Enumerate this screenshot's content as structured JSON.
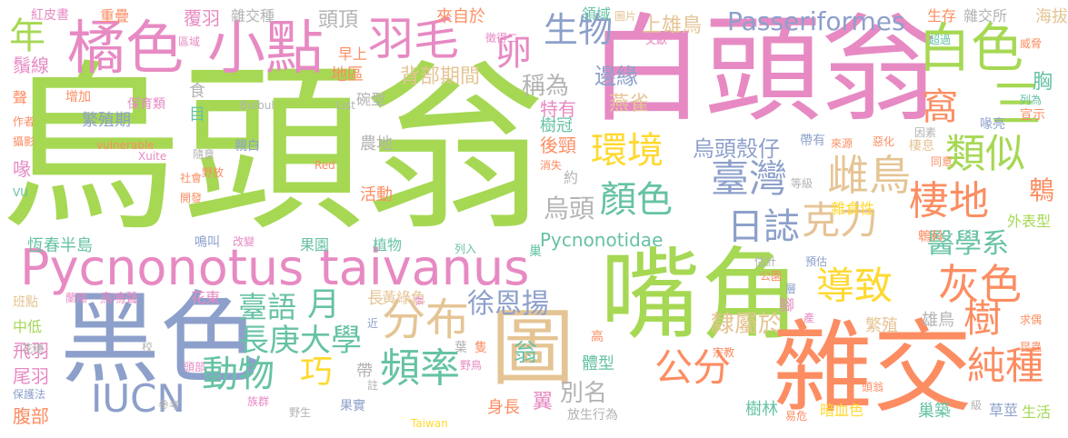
{
  "colors": {
    "green": "#a6d854",
    "pink": "#e78ac3",
    "blue": "#8da0cb",
    "orange": "#fc8d62",
    "teal": "#66c2a5",
    "yellow": "#ffd92f",
    "tan": "#e5c494",
    "gray": "#b3b3b3"
  },
  "words": [
    {
      "text": "烏頭翁",
      "color": "green",
      "weight": 1.0
    },
    {
      "text": "白頭翁",
      "color": "pink",
      "weight": 0.62
    },
    {
      "text": "Pycnonotus taivanus",
      "color": "pink",
      "weight": 0.4
    },
    {
      "text": "黑色",
      "color": "blue",
      "weight": 0.62
    },
    {
      "text": "嘴角",
      "color": "green",
      "weight": 0.58
    },
    {
      "text": "雜交",
      "color": "orange",
      "weight": 0.58
    },
    {
      "text": "圖",
      "color": "tan",
      "weight": 0.45
    },
    {
      "text": "橘色",
      "color": "pink",
      "weight": 0.4
    },
    {
      "text": "小點",
      "color": "pink",
      "weight": 0.4
    },
    {
      "text": "羽毛",
      "color": "pink",
      "weight": 0.32
    },
    {
      "text": "白色",
      "color": "green",
      "weight": 0.38
    },
    {
      "text": "三",
      "color": "green",
      "weight": 0.34
    },
    {
      "text": "環境",
      "color": "yellow",
      "weight": 0.28
    },
    {
      "text": "類似",
      "color": "green",
      "weight": 0.3
    },
    {
      "text": "臺灣",
      "color": "blue",
      "weight": 0.28
    },
    {
      "text": "雌鳥",
      "color": "tan",
      "weight": 0.3
    },
    {
      "text": "棲地",
      "color": "orange",
      "weight": 0.28
    },
    {
      "text": "克力",
      "color": "tan",
      "weight": 0.28
    },
    {
      "text": "顏色",
      "color": "teal",
      "weight": 0.28
    },
    {
      "text": "日誌",
      "color": "blue",
      "weight": 0.28
    },
    {
      "text": "灰色",
      "color": "orange",
      "weight": 0.3
    },
    {
      "text": "導致",
      "color": "yellow",
      "weight": 0.28
    },
    {
      "text": "分布",
      "color": "tan",
      "weight": 0.3
    },
    {
      "text": "頻率",
      "color": "teal",
      "weight": 0.3
    },
    {
      "text": "IUCN",
      "color": "blue",
      "weight": 0.28
    },
    {
      "text": "動物",
      "color": "teal",
      "weight": 0.28
    },
    {
      "text": "公分",
      "color": "orange",
      "weight": 0.28
    },
    {
      "text": "純種",
      "color": "orange",
      "weight": 0.28
    },
    {
      "text": "樹",
      "color": "orange",
      "weight": 0.28
    },
    {
      "text": "長庚大學",
      "color": "teal",
      "weight": 0.22
    },
    {
      "text": "巧",
      "color": "yellow",
      "weight": 0.24
    },
    {
      "text": "月",
      "color": "teal",
      "weight": 0.24
    },
    {
      "text": "臺語",
      "color": "teal",
      "weight": 0.22
    },
    {
      "text": "醫學系",
      "color": "teal",
      "weight": 0.2
    },
    {
      "text": "鵯科",
      "color": "orange",
      "weight": 0.18
    },
    {
      "text": "徐恩揚",
      "color": "blue",
      "weight": 0.2
    },
    {
      "text": "年",
      "color": "green",
      "weight": 0.24
    },
    {
      "text": "生物",
      "color": "blue",
      "weight": 0.24
    },
    {
      "text": "卵",
      "color": "pink",
      "weight": 0.26
    },
    {
      "text": "窩",
      "color": "orange",
      "weight": 0.24
    },
    {
      "text": "Passeriformes",
      "color": "blue",
      "weight": 0.2
    },
    {
      "text": "頭頂",
      "color": "gray",
      "weight": 0.14
    },
    {
      "text": "烏頭",
      "color": "gray",
      "weight": 0.18
    },
    {
      "text": "烏頭殼仔",
      "color": "blue",
      "weight": 0.16
    },
    {
      "text": "稱為",
      "color": "gray",
      "weight": 0.16
    },
    {
      "text": "隸屬於",
      "color": "tan",
      "weight": 0.16
    },
    {
      "text": "別名",
      "color": "gray",
      "weight": 0.16
    },
    {
      "text": "燕雀",
      "color": "tan",
      "weight": 0.14
    },
    {
      "text": "邊緣",
      "color": "blue",
      "weight": 0.16
    },
    {
      "text": "Pycnonotidae",
      "color": "teal",
      "weight": 0.12
    },
    {
      "text": "背部期間",
      "color": "tan",
      "weight": 0.14
    },
    {
      "text": "上雄鳥",
      "color": "tan",
      "weight": 0.14
    },
    {
      "text": "鵯",
      "color": "orange",
      "weight": 0.18
    },
    {
      "text": "胸",
      "color": "teal",
      "weight": 0.14
    },
    {
      "text": "特有",
      "color": "pink",
      "weight": 0.12
    },
    {
      "text": "後頸",
      "color": "orange",
      "weight": 0.12
    },
    {
      "text": "農地",
      "color": "gray",
      "weight": 0.12
    },
    {
      "text": "活動",
      "color": "orange",
      "weight": 0.12
    },
    {
      "text": "樹冠",
      "color": "teal",
      "weight": 0.12
    },
    {
      "text": "繁殖期",
      "color": "blue",
      "weight": 0.12
    },
    {
      "text": "恆春半島",
      "color": "teal",
      "weight": 0.12
    },
    {
      "text": "果園",
      "color": "teal",
      "weight": 0.1
    },
    {
      "text": "植物",
      "color": "teal",
      "weight": 0.1
    },
    {
      "text": "花東",
      "color": "pink",
      "weight": 0.1
    },
    {
      "text": "翁",
      "color": "teal",
      "weight": 0.18
    },
    {
      "text": "體型",
      "color": "teal",
      "weight": 0.12
    },
    {
      "text": "身長",
      "color": "orange",
      "weight": 0.12
    },
    {
      "text": "翼",
      "color": "pink",
      "weight": 0.14
    },
    {
      "text": "樹林",
      "color": "teal",
      "weight": 0.12
    },
    {
      "text": "雄鳥",
      "color": "gray",
      "weight": 0.12
    },
    {
      "text": "暗血色",
      "color": "yellow",
      "weight": 0.12
    },
    {
      "text": "巢築",
      "color": "teal",
      "weight": 0.12
    },
    {
      "text": "草莖",
      "color": "blue",
      "weight": 0.12
    },
    {
      "text": "生活",
      "color": "green",
      "weight": 0.12
    },
    {
      "text": "繁殖",
      "color": "tan",
      "weight": 0.12
    },
    {
      "text": "雜食性",
      "color": "yellow",
      "weight": 0.1
    },
    {
      "text": "外表型",
      "color": "green",
      "weight": 0.1
    },
    {
      "text": "來自於",
      "color": "orange",
      "weight": 0.1
    },
    {
      "text": "領域",
      "color": "teal",
      "weight": 0.1
    },
    {
      "text": "海拔",
      "color": "tan",
      "weight": 0.12
    },
    {
      "text": "雜交所",
      "color": "gray",
      "weight": 0.1
    },
    {
      "text": "生存",
      "color": "orange",
      "weight": 0.1
    },
    {
      "text": "覆羽",
      "color": "pink",
      "weight": 0.12
    },
    {
      "text": "雜交種",
      "color": "gray",
      "weight": 0.1
    },
    {
      "text": "重疊",
      "color": "orange",
      "weight": 0.1
    },
    {
      "text": "紅皮書",
      "color": "pink",
      "weight": 0.09
    },
    {
      "text": "鬚線",
      "color": "pink",
      "weight": 0.12
    },
    {
      "text": "聲",
      "color": "orange",
      "weight": 0.1
    },
    {
      "text": "喙",
      "color": "pink",
      "weight": 0.12
    },
    {
      "text": "飛羽",
      "color": "pink",
      "weight": 0.12
    },
    {
      "text": "尾羽",
      "color": "pink",
      "weight": 0.12
    },
    {
      "text": "腹部",
      "color": "orange",
      "weight": 0.12
    },
    {
      "text": "中低",
      "color": "green",
      "weight": 0.1
    },
    {
      "text": "班點",
      "color": "tan",
      "weight": 0.09
    },
    {
      "text": "增加",
      "color": "orange",
      "weight": 0.09
    },
    {
      "text": "地區",
      "color": "orange",
      "weight": 0.1
    },
    {
      "text": "早上",
      "color": "orange",
      "weight": 0.1
    },
    {
      "text": "碗型",
      "color": "gray",
      "weight": 0.09
    },
    {
      "text": "食",
      "color": "gray",
      "weight": 0.1
    },
    {
      "text": "目",
      "color": "teal",
      "weight": 0.1
    },
    {
      "text": "保育類",
      "color": "pink",
      "weight": 0.09
    },
    {
      "text": "Bulbul",
      "color": "gray",
      "weight": 0.07
    },
    {
      "text": "vulnerable",
      "color": "orange",
      "weight": 0.07
    },
    {
      "text": "親白",
      "color": "blue",
      "weight": 0.09
    },
    {
      "text": "喙亮",
      "color": "blue",
      "weight": 0.09
    },
    {
      "text": "宣示",
      "color": "orange",
      "weight": 0.09
    },
    {
      "text": "超過",
      "color": "teal",
      "weight": 0.08
    },
    {
      "text": "威脅",
      "color": "orange",
      "weight": 0.08
    },
    {
      "text": "棲息",
      "color": "tan",
      "weight": 0.09
    },
    {
      "text": "惡化",
      "color": "orange",
      "weight": 0.08
    },
    {
      "text": "因素",
      "color": "gray",
      "weight": 0.08
    },
    {
      "text": "同意",
      "color": "orange",
      "weight": 0.08
    },
    {
      "text": "帶有",
      "color": "blue",
      "weight": 0.09
    },
    {
      "text": "來源",
      "color": "orange",
      "weight": 0.08
    },
    {
      "text": "等級",
      "color": "gray",
      "weight": 0.08
    },
    {
      "text": "鳴叫",
      "color": "blue",
      "weight": 0.09
    },
    {
      "text": "改變",
      "color": "pink",
      "weight": 0.08
    },
    {
      "text": "鳥鳴聲",
      "color": "pink",
      "weight": 0.09
    },
    {
      "text": "蘭陽",
      "color": "pink",
      "weight": 0.08
    },
    {
      "text": "長",
      "color": "tan",
      "weight": 0.1
    },
    {
      "text": "黃綠色",
      "color": "tan",
      "weight": 0.09
    },
    {
      "text": "估計",
      "color": "gray",
      "weight": 0.08
    },
    {
      "text": "公園",
      "color": "orange",
      "weight": 0.08
    },
    {
      "text": "腳",
      "color": "pink",
      "weight": 0.1
    },
    {
      "text": "產",
      "color": "pink",
      "weight": 0.08
    },
    {
      "text": "宗教",
      "color": "orange",
      "weight": 0.08
    },
    {
      "text": "族群",
      "color": "pink",
      "weight": 0.08
    },
    {
      "text": "頭部",
      "color": "pink",
      "weight": 0.08
    },
    {
      "text": "求偶",
      "color": "orange",
      "weight": 0.08
    },
    {
      "text": "昆蟲",
      "color": "orange",
      "weight": 0.08
    },
    {
      "text": "頭翁",
      "color": "orange",
      "weight": 0.08
    },
    {
      "text": "級",
      "color": "gray",
      "weight": 0.08
    },
    {
      "text": "易危",
      "color": "orange",
      "weight": 0.08
    },
    {
      "text": "放生行為",
      "color": "gray",
      "weight": 0.09
    },
    {
      "text": "果實",
      "color": "blue",
      "weight": 0.09
    },
    {
      "text": "野生",
      "color": "gray",
      "weight": 0.08
    },
    {
      "text": "參考",
      "color": "gray",
      "weight": 0.07
    },
    {
      "text": "保護法",
      "color": "blue",
      "weight": 0.08
    },
    {
      "text": "花穗",
      "color": "gray",
      "weight": 0.08
    },
    {
      "text": "Taiwan",
      "color": "yellow",
      "weight": 0.07
    },
    {
      "text": "野鳥",
      "color": "pink",
      "weight": 0.08
    },
    {
      "text": "隻",
      "color": "orange",
      "weight": 0.09
    },
    {
      "text": "葉",
      "color": "gray",
      "weight": 0.09
    },
    {
      "text": "高",
      "color": "orange",
      "weight": 0.09
    },
    {
      "text": "近",
      "color": "blue",
      "weight": 0.08
    },
    {
      "text": "註",
      "color": "gray",
      "weight": 0.08
    },
    {
      "text": "帶",
      "color": "gray",
      "weight": 0.1
    },
    {
      "text": "校",
      "color": "gray",
      "weight": 0.08
    },
    {
      "text": "張",
      "color": "pink",
      "weight": 0.07
    },
    {
      "text": "列入",
      "color": "teal",
      "weight": 0.07
    },
    {
      "text": "巢",
      "color": "teal",
      "weight": 0.08
    },
    {
      "text": "Red",
      "color": "orange",
      "weight": 0.07
    },
    {
      "text": "List",
      "color": "gray",
      "weight": 0.07
    },
    {
      "text": "消失",
      "color": "orange",
      "weight": 0.07
    },
    {
      "text": "約",
      "color": "gray",
      "weight": 0.09
    },
    {
      "text": "野放",
      "color": "orange",
      "weight": 0.08
    },
    {
      "text": "社會",
      "color": "orange",
      "weight": 0.07
    },
    {
      "text": "開發",
      "color": "orange",
      "weight": 0.07
    },
    {
      "text": "隨意",
      "color": "gray",
      "weight": 0.07
    },
    {
      "text": "Xuite",
      "color": "pink",
      "weight": 0.07
    },
    {
      "text": "區域",
      "color": "pink",
      "weight": 0.07
    },
    {
      "text": "作者",
      "color": "orange",
      "weight": 0.07
    },
    {
      "text": "攝影",
      "color": "orange",
      "weight": 0.07
    },
    {
      "text": "VU",
      "color": "teal",
      "weight": 0.07
    },
    {
      "text": "徵得二",
      "color": "pink",
      "weight": 0.07
    },
    {
      "text": "文獻",
      "color": "pink",
      "weight": 0.07
    },
    {
      "text": "圖片",
      "color": "tan",
      "weight": 0.07
    },
    {
      "text": "列為",
      "color": "teal",
      "weight": 0.07
    },
    {
      "text": "層",
      "color": "blue",
      "weight": 0.07
    },
    {
      "text": "預估",
      "color": "blue",
      "weight": 0.07
    }
  ]
}
